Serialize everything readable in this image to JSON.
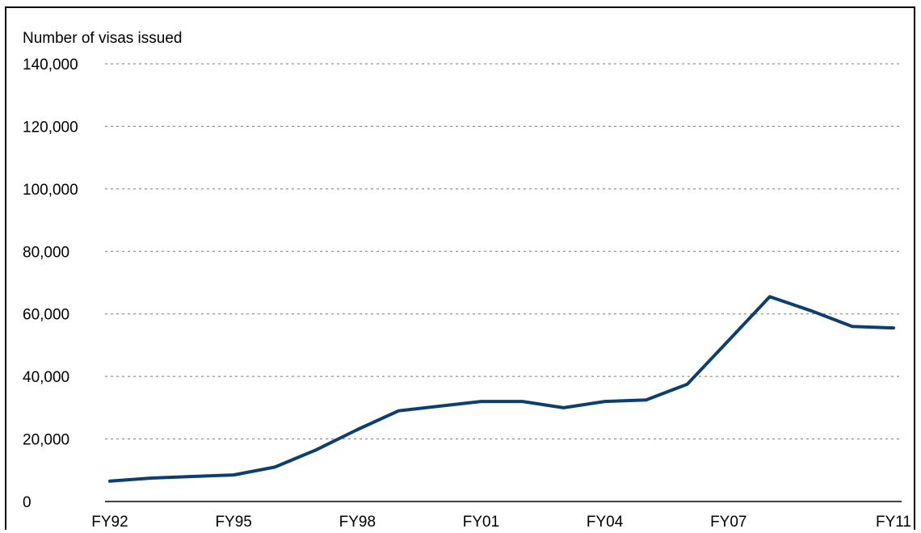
{
  "chart_data": {
    "type": "line",
    "title": "",
    "ylabel": "Number of visas issued",
    "xlabel": "",
    "ylim": [
      0,
      140000
    ],
    "yticks": [
      0,
      20000,
      40000,
      60000,
      80000,
      100000,
      120000,
      140000
    ],
    "ytick_labels": [
      "0",
      "20,000",
      "40,000",
      "60,000",
      "80,000",
      "100,000",
      "120,000",
      "140,000"
    ],
    "x": [
      "FY92",
      "FY93",
      "FY94",
      "FY95",
      "FY96",
      "FY97",
      "FY98",
      "FY99",
      "FY00",
      "FY01",
      "FY02",
      "FY03",
      "FY04",
      "FY05",
      "FY06",
      "FY07",
      "FY08",
      "FY09",
      "FY10",
      "FY11"
    ],
    "xtick_labels": [
      "FY92",
      "FY95",
      "FY98",
      "FY01",
      "FY04",
      "FY07",
      "FY11"
    ],
    "grid": true,
    "series": [
      {
        "color": "#0d3f6e",
        "values": [
          6500,
          7500,
          8000,
          8500,
          11000,
          16500,
          23000,
          29000,
          30500,
          32000,
          32000,
          30000,
          32000,
          32500,
          37500,
          51500,
          65500,
          61000,
          56000,
          55500
        ]
      }
    ]
  }
}
